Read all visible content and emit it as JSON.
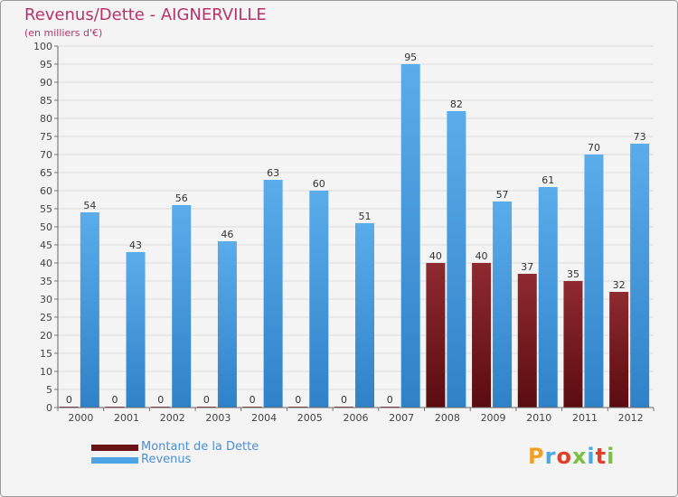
{
  "header": {
    "title": "Revenus/Dette - AIGNERVILLE",
    "subtitle": "(en milliers d'€)"
  },
  "chart_data": {
    "type": "bar",
    "categories": [
      "2000",
      "2001",
      "2002",
      "2003",
      "2004",
      "2005",
      "2006",
      "2007",
      "2008",
      "2009",
      "2010",
      "2011",
      "2012"
    ],
    "series": [
      {
        "name": "Montant de la Dette",
        "color": "#7a1a1f",
        "values": [
          0,
          0,
          0,
          0,
          0,
          0,
          0,
          0,
          40,
          40,
          37,
          35,
          32
        ]
      },
      {
        "name": "Revenus",
        "color": "#4da3e4",
        "values": [
          54,
          43,
          56,
          46,
          63,
          60,
          51,
          95,
          82,
          57,
          61,
          70,
          73
        ]
      }
    ],
    "ylim": [
      0,
      100
    ],
    "ytick_step": 5,
    "grid": true,
    "legend_position": "bottom-left"
  },
  "logo": {
    "letters": [
      "P",
      "r",
      "o",
      "x",
      "i",
      "t",
      "i"
    ],
    "colors": [
      "#f0a028",
      "#4aa8e0",
      "#e0402a",
      "#7ac043",
      "#4aa8e0",
      "#e0402a",
      "#7ac043"
    ]
  }
}
